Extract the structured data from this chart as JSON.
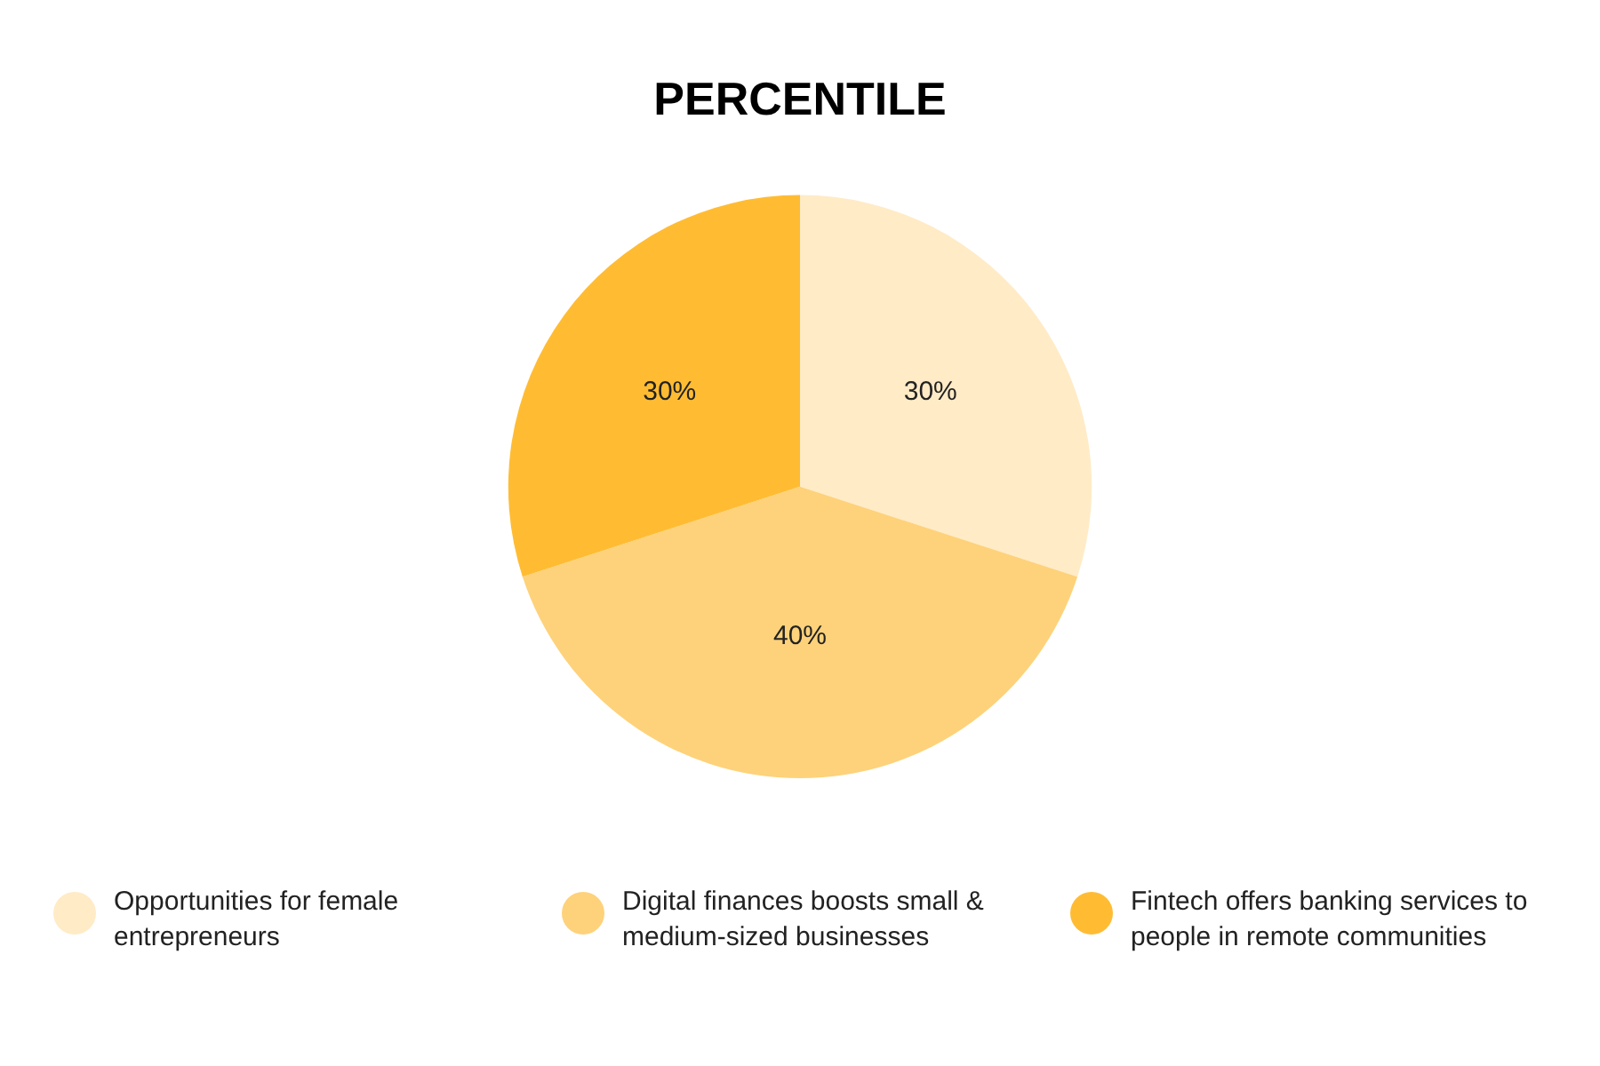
{
  "chart_data": {
    "type": "pie",
    "title": "PERCENTILE",
    "categories": [
      "Opportunities for female entrepreneurs",
      "Digital finances boosts small & medium-sized businesses",
      "Fintech offers banking services to people in remote communities"
    ],
    "values": [
      30,
      40,
      30
    ],
    "value_labels": [
      "30%",
      "40%",
      "30%"
    ],
    "colors": [
      "#ffebc6",
      "#fed27a",
      "#ffbc33"
    ],
    "legend": "bottom"
  }
}
